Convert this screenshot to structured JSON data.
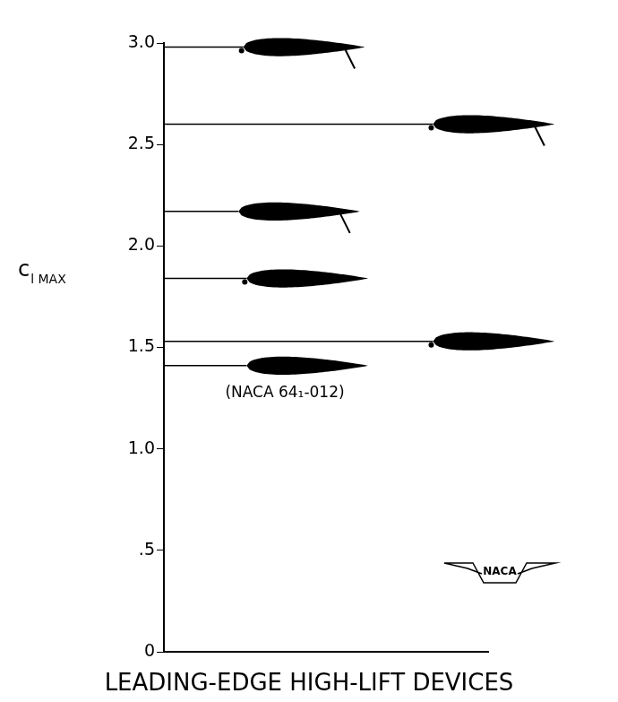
{
  "chart_data": {
    "type": "line",
    "ylabel": "cl MAX",
    "title": "LEADING-EDGE HIGH-LIFT DEVICES",
    "annotations": [
      "(NACA 64₁-012)",
      "NACA"
    ],
    "values": [
      1.41,
      1.53,
      1.84,
      2.17,
      2.6,
      2.98
    ],
    "color": "#000000",
    "ylim": [
      0,
      3
    ],
    "yticks": [
      0,
      {
        "value": 0.5,
        "label": ".5"
      },
      {
        "value": 1,
        "label": "1.0"
      },
      1.5,
      {
        "value": 2,
        "label": "2.0"
      },
      2.5,
      {
        "value": 3,
        "label": "3.0"
      }
    ],
    "grid": false,
    "tick_labels": "y"
  }
}
